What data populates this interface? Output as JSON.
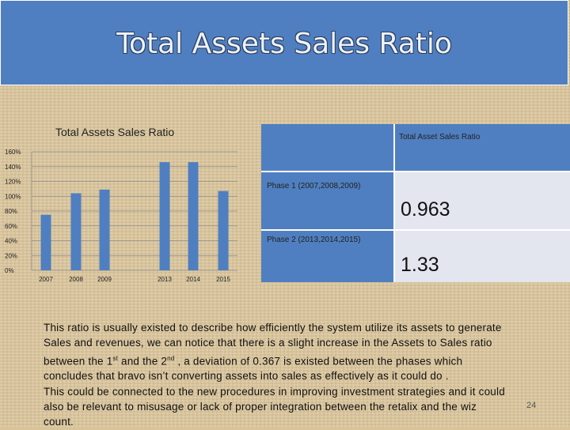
{
  "slide": {
    "title": "Total Assets Sales Ratio",
    "page_number": "24"
  },
  "chart_data": {
    "type": "bar",
    "title": "Total Assets Sales Ratio",
    "categories": [
      "2007",
      "2008",
      "2009",
      "2013",
      "2014",
      "2015"
    ],
    "values": [
      0.75,
      1.04,
      1.09,
      1.46,
      1.46,
      1.07
    ],
    "ylim": [
      0,
      1.6
    ],
    "yticks": [
      "0%",
      "20%",
      "40%",
      "60%",
      "80%",
      "100%",
      "120%",
      "140%",
      "160%"
    ],
    "grid": true,
    "bar_color": "#4f7fc0"
  },
  "table": {
    "header": "Total Asset Sales Ratio",
    "rows": [
      {
        "phase": "Phase 1 (2007,2008,2009)",
        "value": "0.963"
      },
      {
        "phase": "Phase 2 (2013,2014,2015)",
        "value": "1.33"
      }
    ]
  },
  "paragraph": {
    "line1": "This ratio is usually existed to describe how efficiently the system utilize its assets to generate",
    "line2": "Sales and revenues, we can notice that there is a slight increase in the Assets to Sales ratio",
    "line3a": "between the 1",
    "sup1": "st",
    "line3b": " and the 2",
    "sup2": "nd",
    "line3c": " , a deviation of 0.367  is existed between the phases which",
    "line4": "concludes that bravo isn’t converting assets into sales as effectively as it could do .",
    "line5": "This could be connected to the new procedures in improving investment strategies and it could",
    "line6": "also be relevant to misusage or lack of proper integration between the retalix and the wiz",
    "line7": "count."
  }
}
